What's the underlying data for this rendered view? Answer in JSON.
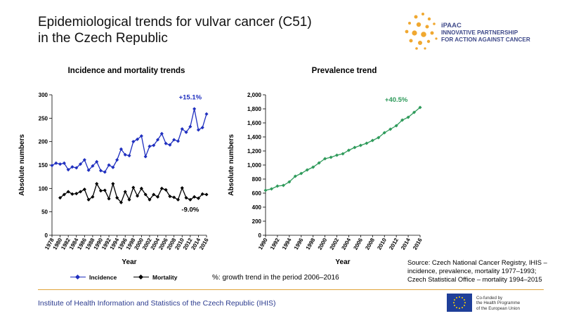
{
  "header": {
    "title_line1": "Epidemiological trends for vulvar cancer (C51)",
    "title_line2": "in the Czech Republic"
  },
  "logo": {
    "brand": "iPAAC",
    "line1": "INNOVATIVE PARTNERSHIP",
    "line2": "FOR ACTION AGAINST CANCER",
    "color": "#3f4a8a",
    "accent": "#f0a830"
  },
  "chart_data": [
    {
      "type": "line",
      "title": "Incidence and mortality trends",
      "xlabel": "Year",
      "ylabel": "Absolute numbers",
      "ylim": [
        0,
        300
      ],
      "yticks": [
        0,
        50,
        100,
        150,
        200,
        250,
        300
      ],
      "x": [
        1978,
        1979,
        1980,
        1981,
        1982,
        1983,
        1984,
        1985,
        1986,
        1987,
        1988,
        1989,
        1990,
        1991,
        1992,
        1993,
        1994,
        1995,
        1996,
        1997,
        1998,
        1999,
        2000,
        2001,
        2002,
        2003,
        2004,
        2005,
        2006,
        2007,
        2008,
        2009,
        2010,
        2011,
        2012,
        2013,
        2014,
        2015,
        2016
      ],
      "xtick_labels": [
        "1978",
        "1980",
        "1982",
        "1984",
        "1986",
        "1988",
        "1990",
        "1992",
        "1994",
        "1996",
        "1998",
        "2000",
        "2002",
        "2004",
        "2006",
        "2008",
        "2010",
        "2012",
        "2014",
        "2016"
      ],
      "grid": false,
      "legend": "bottom",
      "series": [
        {
          "name": "Incidence",
          "color": "#1f2fbf",
          "values": [
            149,
            154,
            152,
            154,
            140,
            146,
            144,
            152,
            161,
            139,
            148,
            157,
            138,
            135,
            150,
            145,
            161,
            184,
            172,
            170,
            200,
            205,
            212,
            168,
            190,
            192,
            204,
            217,
            196,
            193,
            204,
            201,
            227,
            220,
            232,
            270,
            225,
            230,
            259
          ]
        },
        {
          "name": "Mortality",
          "color": "#000000",
          "values": [
            null,
            null,
            80,
            87,
            93,
            88,
            89,
            93,
            98,
            76,
            82,
            110,
            95,
            96,
            78,
            110,
            80,
            70,
            93,
            76,
            102,
            84,
            100,
            87,
            76,
            87,
            82,
            100,
            97,
            83,
            81,
            76,
            101,
            80,
            76,
            82,
            79,
            88,
            87
          ]
        }
      ],
      "annotations": [
        {
          "text": "+15.1%",
          "color": "#1f2fbf",
          "x": 2012,
          "y": 290
        },
        {
          "text": "-9.0%",
          "color": "#000000",
          "x": 2012,
          "y": 50
        }
      ]
    },
    {
      "type": "line",
      "title": "Prevalence trend",
      "xlabel": "Year",
      "ylabel": "Absolute numbers",
      "ylim": [
        0,
        2000
      ],
      "yticks": [
        0,
        200,
        400,
        600,
        800,
        1000,
        1200,
        1400,
        1600,
        1800,
        2000
      ],
      "ytick_labels": [
        "0",
        "200",
        "400",
        "600",
        "800",
        "1,000",
        "1,200",
        "1,400",
        "1,600",
        "1,800",
        "2,000"
      ],
      "x": [
        1990,
        1991,
        1992,
        1993,
        1994,
        1995,
        1996,
        1997,
        1998,
        1999,
        2000,
        2001,
        2002,
        2003,
        2004,
        2005,
        2006,
        2007,
        2008,
        2009,
        2010,
        2011,
        2012,
        2013,
        2014,
        2015,
        2016
      ],
      "xtick_labels": [
        "1990",
        "1992",
        "1994",
        "1996",
        "1998",
        "2000",
        "2002",
        "2004",
        "2006",
        "2008",
        "2010",
        "2012",
        "2014",
        "2016"
      ],
      "grid": false,
      "series": [
        {
          "color": "#2e9a5a",
          "values": [
            640,
            660,
            700,
            710,
            760,
            840,
            880,
            930,
            970,
            1030,
            1090,
            1110,
            1140,
            1160,
            1210,
            1250,
            1280,
            1310,
            1350,
            1390,
            1460,
            1510,
            1560,
            1640,
            1680,
            1750,
            1820
          ]
        }
      ],
      "annotations": [
        {
          "text": "+40.5%",
          "color": "#2e9a5a",
          "x": 2012,
          "y": 1900
        }
      ]
    }
  ],
  "legend": {
    "incidence": "Incidence",
    "mortality": "Mortality"
  },
  "note": "%: growth trend in the period 2006–2016",
  "source": {
    "line1": "Source: Czech National Cancer Registry, IHIS –",
    "line2": "incidence, prevalence, mortality 1977–1993;",
    "line3": "Czech Statistical Office – mortality 1994–2015"
  },
  "footer": {
    "institute": "Institute of Health Information and Statistics of the Czech Republic (IHIS)",
    "eu_line1": "Co-funded by",
    "eu_line2": "the Health Programme",
    "eu_line3": "of the European Union"
  }
}
